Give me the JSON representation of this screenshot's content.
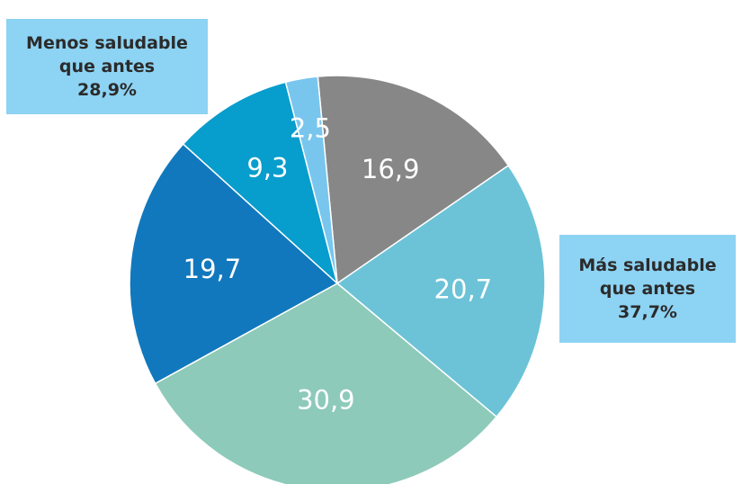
{
  "chart_data": {
    "type": "pie",
    "title": "",
    "slices": [
      {
        "label": "16,9",
        "value": 16.9,
        "color": "#878787"
      },
      {
        "label": "20,7",
        "value": 20.7,
        "color": "#6cc3d7"
      },
      {
        "label": "30,9",
        "value": 30.9,
        "color": "#8dcaba"
      },
      {
        "label": "19,7",
        "value": 19.7,
        "color": "#1278bd"
      },
      {
        "label": "9,3",
        "value": 9.3,
        "color": "#079dcd"
      },
      {
        "label": "2,5",
        "value": 2.5,
        "color": "#78c6ee"
      }
    ],
    "annotations": [
      {
        "id": "menos",
        "lines": [
          "Menos saludable",
          "que antes",
          "28,9%"
        ]
      },
      {
        "id": "mas",
        "lines": [
          "Más saludable",
          "que antes",
          "37,7%"
        ]
      }
    ]
  }
}
